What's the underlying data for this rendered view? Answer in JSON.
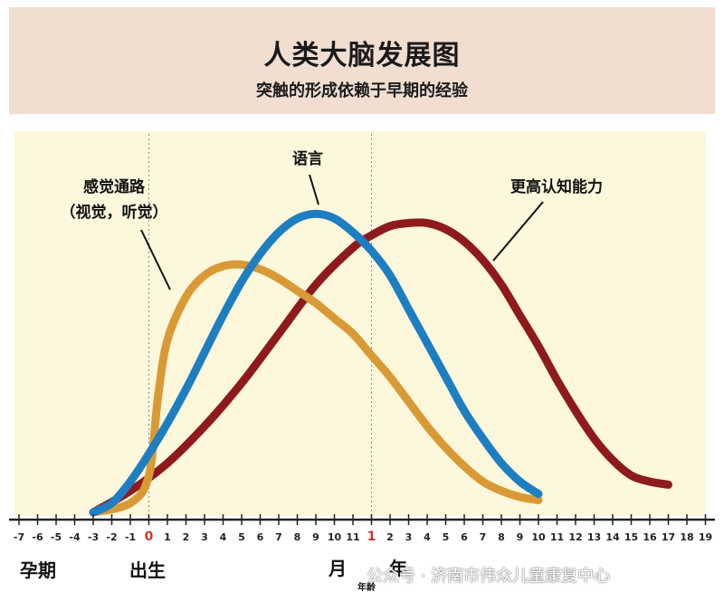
{
  "header": {
    "title": "人类大脑发展图",
    "subtitle": "突触的形成依赖于早期的经验"
  },
  "annotations": {
    "sensory": [
      "感觉通路",
      "（视觉，听觉）"
    ],
    "language": "语言",
    "cognition": "更高认知能力"
  },
  "footer": {
    "pregnancy": "孕期",
    "birth": "出生",
    "month": "月",
    "year": "年",
    "age": "年龄"
  },
  "watermark": "公众号 · 济南市伟众儿童康复中心",
  "colors": {
    "header_bg": "#f1ded1",
    "plot_bg": "#fdf7dc",
    "sensory": "#d99a36",
    "language": "#1e7ec2",
    "cognition": "#8e1a1e",
    "zero_tick": "#d6302a"
  },
  "chart_data": {
    "type": "line",
    "title": "人类大脑发展图",
    "subtitle": "突触的形成依赖于早期的经验",
    "x_ticks": [
      "-7",
      "-6",
      "-5",
      "-4",
      "-3",
      "-2",
      "-1",
      "0",
      "1",
      "2",
      "3",
      "4",
      "5",
      "6",
      "7",
      "8",
      "9",
      "10",
      "11",
      "1",
      "2",
      "3",
      "4",
      "5",
      "6",
      "7",
      "8",
      "9",
      "10",
      "11",
      "12",
      "13",
      "14",
      "15",
      "16",
      "17",
      "18",
      "19"
    ],
    "x_tick_highlight": [
      "0",
      "1"
    ],
    "xlim": [
      -7,
      30
    ],
    "ylim": [
      0,
      100
    ],
    "birth_x": 0,
    "one_year_x": 12,
    "series": [
      {
        "name": "感觉通路（视觉，听觉）",
        "color": "#d99a36",
        "x": [
          -3,
          -1,
          0,
          0.5,
          1,
          2,
          3,
          4,
          5,
          6,
          7,
          8,
          9,
          10,
          11,
          12,
          13,
          14,
          15,
          16,
          17,
          18,
          19,
          20,
          21
        ],
        "y": [
          0,
          3,
          12,
          38,
          56,
          70,
          77,
          80,
          80.5,
          79,
          76,
          72,
          68,
          63,
          58,
          51,
          44,
          36,
          28,
          21,
          15,
          10,
          7,
          5,
          4
        ]
      },
      {
        "name": "语言",
        "color": "#1e7ec2",
        "x": [
          -3,
          -2,
          -1,
          0,
          1,
          2,
          3,
          4,
          5,
          6,
          7,
          8,
          9,
          10,
          11,
          12,
          13,
          14,
          15,
          16,
          17,
          18,
          19,
          20,
          21
        ],
        "y": [
          0,
          3,
          10,
          19,
          29,
          40,
          52,
          64,
          75,
          84,
          91,
          95.5,
          97,
          95.5,
          91,
          85,
          77,
          66,
          55,
          44,
          33,
          24,
          16,
          10,
          6
        ]
      },
      {
        "name": "更高认知能力",
        "color": "#8e1a1e",
        "x": [
          -3,
          -1,
          1,
          3,
          5,
          7,
          9,
          11,
          12,
          13,
          14,
          15,
          16,
          17,
          18,
          19,
          20,
          21,
          22,
          23,
          24,
          25,
          26,
          27,
          28
        ],
        "y": [
          0,
          7,
          16,
          28,
          42,
          58,
          74,
          86,
          90,
          93,
          94,
          94,
          92,
          88,
          82,
          74,
          64,
          54,
          43,
          33,
          24,
          17,
          12,
          10,
          9
        ]
      }
    ]
  }
}
